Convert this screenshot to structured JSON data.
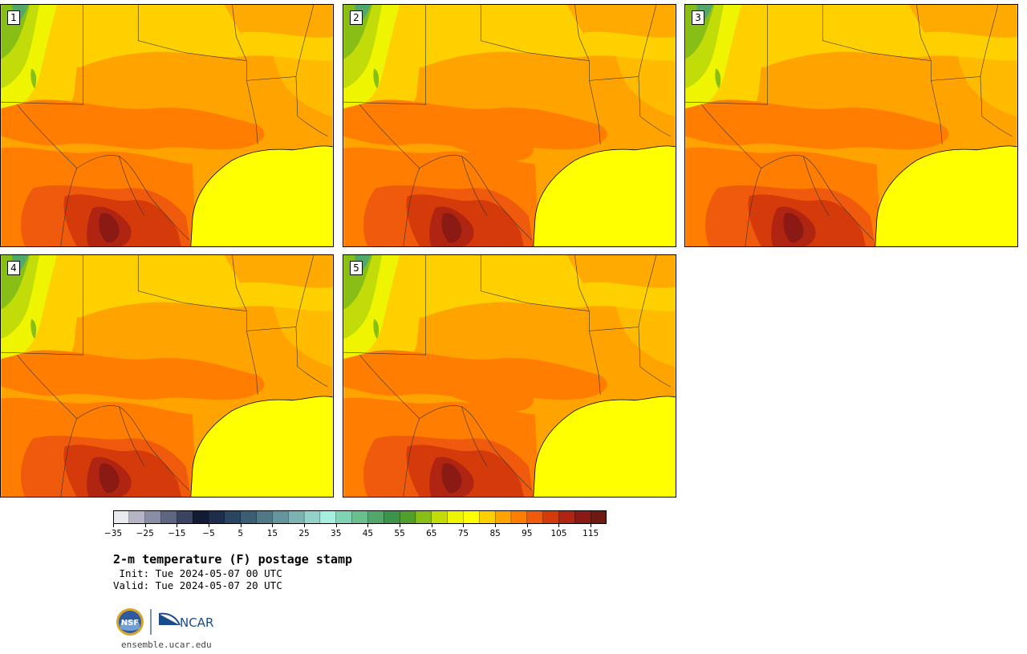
{
  "stamps": [
    {
      "label": "1",
      "variant": 0
    },
    {
      "label": "2",
      "variant": 1
    },
    {
      "label": "3",
      "variant": 2
    },
    {
      "label": "4",
      "variant": 3
    },
    {
      "label": "5",
      "variant": 4
    }
  ],
  "colorbar": {
    "min": -35,
    "step": 5,
    "colors": [
      "#e8eaf0",
      "#b4b6c6",
      "#8a8ea4",
      "#5e6682",
      "#3a4462",
      "#131a33",
      "#1d2d4c",
      "#2a4560",
      "#3b5e73",
      "#4f7986",
      "#65959c",
      "#7cb3b2",
      "#92d2c9",
      "#a6eedf",
      "#7fd4b5",
      "#6abf8f",
      "#52a86a",
      "#3b944a",
      "#509e2b",
      "#87bf17",
      "#c2dc0a",
      "#eff500",
      "#ffff00",
      "#ffd000",
      "#ffa300",
      "#ff7d00",
      "#f05a0c",
      "#d43a0a",
      "#b02412",
      "#8c1a14",
      "#6e1a12"
    ],
    "tick_labels": [
      "−35",
      "−25",
      "−15",
      "−5",
      "5",
      "15",
      "25",
      "35",
      "45",
      "55",
      "65",
      "75",
      "85",
      "95",
      "105",
      "115"
    ],
    "tick_values": [
      -35,
      -25,
      -15,
      -5,
      5,
      15,
      25,
      35,
      45,
      55,
      65,
      75,
      85,
      95,
      105,
      115
    ]
  },
  "title": "2-m temperature (F) postage stamp",
  "init_line": " Init: Tue 2024-05-07 00 UTC",
  "valid_line": "Valid: Tue 2024-05-07 20 UTC",
  "logos": {
    "nsf_text": "NSF",
    "ncar_text": "NCAR"
  },
  "url": "ensemble.ucar.edu",
  "icons": [
    "nsf-logo-icon",
    "ncar-logo-icon"
  ]
}
